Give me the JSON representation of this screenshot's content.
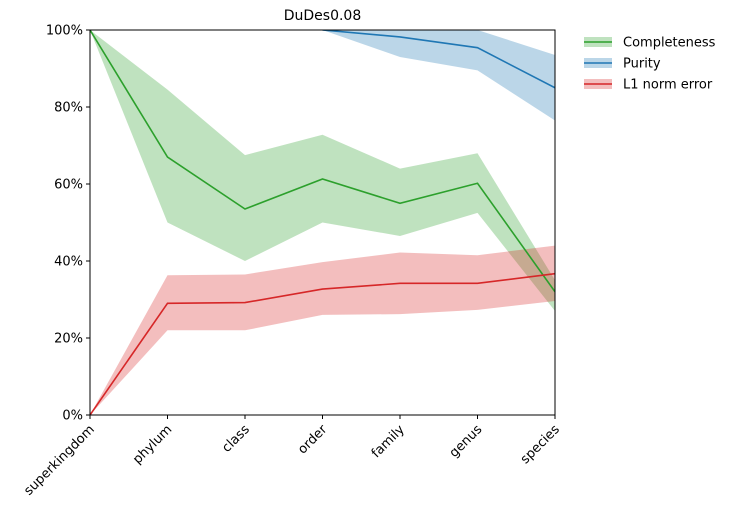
{
  "chart_data": {
    "type": "line",
    "title": "DuDes0.08",
    "xlabel": "",
    "ylabel": "",
    "categories": [
      "superkingdom",
      "phylum",
      "class",
      "order",
      "family",
      "genus",
      "species"
    ],
    "ylim": [
      0,
      1
    ],
    "yticks": [
      "0%",
      "20%",
      "40%",
      "60%",
      "80%",
      "100%"
    ],
    "ytick_values": [
      0,
      0.2,
      0.4,
      0.6,
      0.8,
      1.0
    ],
    "grid": false,
    "legend_position": "outside-top-right",
    "series": [
      {
        "name": "Completeness",
        "color": "#2ca02c",
        "band_color": "#2ca02c",
        "values": [
          1.0,
          0.67,
          0.535,
          0.613,
          0.55,
          0.602,
          0.32
        ],
        "lower": [
          1.0,
          0.5,
          0.4,
          0.5,
          0.465,
          0.525,
          0.27
        ],
        "upper": [
          1.0,
          0.845,
          0.675,
          0.728,
          0.64,
          0.68,
          0.35
        ]
      },
      {
        "name": "Purity",
        "color": "#1f77b4",
        "band_color": "#1f77b4",
        "values": [
          null,
          null,
          null,
          1.0,
          0.982,
          0.954,
          0.85
        ],
        "lower": [
          null,
          null,
          null,
          1.0,
          0.93,
          0.895,
          0.765
        ],
        "upper": [
          null,
          null,
          null,
          1.0,
          1.0,
          1.0,
          0.935
        ]
      },
      {
        "name": "L1 norm error",
        "color": "#d62728",
        "band_color": "#d62728",
        "values": [
          0.0,
          0.29,
          0.292,
          0.327,
          0.342,
          0.342,
          0.367
        ],
        "lower": [
          0.0,
          0.22,
          0.22,
          0.26,
          0.262,
          0.273,
          0.296
        ],
        "upper": [
          0.0,
          0.363,
          0.365,
          0.397,
          0.422,
          0.415,
          0.44
        ]
      }
    ]
  }
}
